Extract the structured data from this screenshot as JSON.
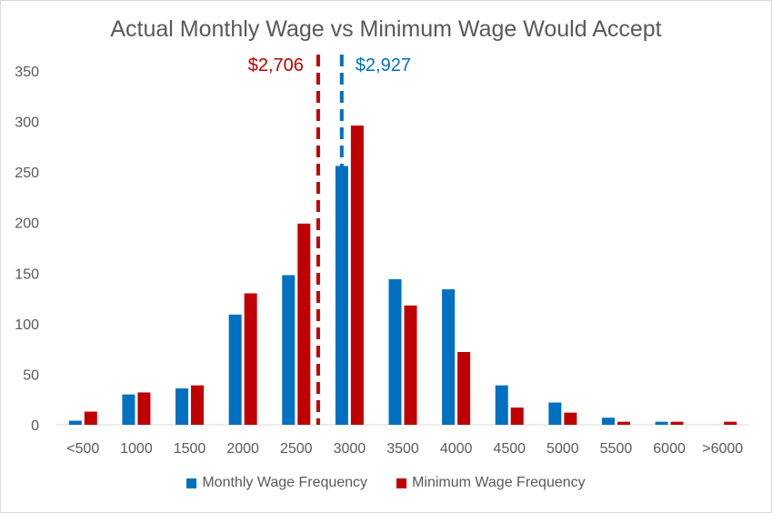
{
  "chart_data": {
    "type": "bar",
    "title": "Actual Monthly Wage vs Minimum Wage Would Accept",
    "xlabel": "",
    "ylabel": "",
    "ylim": [
      0,
      350
    ],
    "yticks": [
      0,
      50,
      100,
      150,
      200,
      250,
      300,
      350
    ],
    "categories": [
      "<500",
      "1000",
      "1500",
      "2000",
      "2500",
      "3000",
      "3500",
      "4000",
      "4500",
      "5000",
      "5500",
      "6000",
      ">6000"
    ],
    "series": [
      {
        "name": "Monthly Wage Frequency",
        "color": "#0070c0",
        "values": [
          4,
          30,
          36,
          109,
          148,
          256,
          144,
          134,
          39,
          22,
          7,
          3,
          0
        ]
      },
      {
        "name": "Minimum Wage Frequency",
        "color": "#c00000",
        "values": [
          13,
          32,
          39,
          130,
          199,
          296,
          118,
          72,
          17,
          12,
          3,
          3,
          3
        ]
      }
    ],
    "reference_lines": [
      {
        "label": "$2,706",
        "value": 2706,
        "color": "#c00000"
      },
      {
        "label": "$2,927",
        "value": 2927,
        "color": "#0070c0"
      }
    ],
    "grid": false,
    "legend": "bottom"
  }
}
